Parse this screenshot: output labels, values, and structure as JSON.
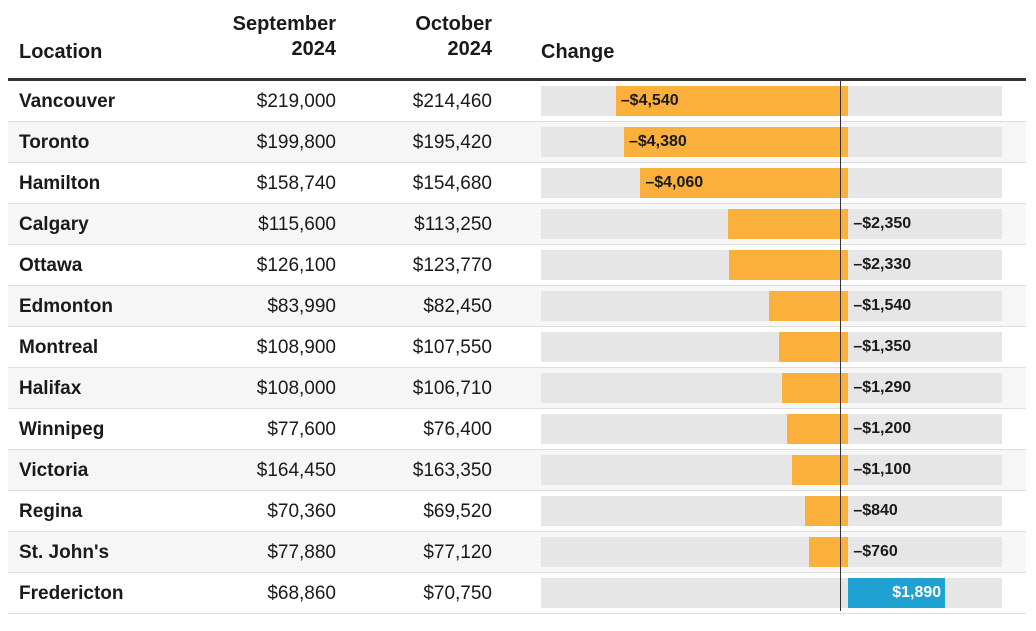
{
  "chart_data": {
    "type": "table",
    "columns": [
      "Location",
      "September 2024",
      "October 2024",
      "Change"
    ],
    "rows": [
      {
        "location": "Vancouver",
        "sep": "$219,000",
        "oct": "$214,460",
        "change": -4540,
        "change_label": "–$4,540"
      },
      {
        "location": "Toronto",
        "sep": "$199,800",
        "oct": "$195,420",
        "change": -4380,
        "change_label": "–$4,380"
      },
      {
        "location": "Hamilton",
        "sep": "$158,740",
        "oct": "$154,680",
        "change": -4060,
        "change_label": "–$4,060"
      },
      {
        "location": "Calgary",
        "sep": "$115,600",
        "oct": "$113,250",
        "change": -2350,
        "change_label": "–$2,350"
      },
      {
        "location": "Ottawa",
        "sep": "$126,100",
        "oct": "$123,770",
        "change": -2330,
        "change_label": "–$2,330"
      },
      {
        "location": "Edmonton",
        "sep": "$83,990",
        "oct": "$82,450",
        "change": -1540,
        "change_label": "–$1,540"
      },
      {
        "location": "Montreal",
        "sep": "$108,900",
        "oct": "$107,550",
        "change": -1350,
        "change_label": "–$1,350"
      },
      {
        "location": "Halifax",
        "sep": "$108,000",
        "oct": "$106,710",
        "change": -1290,
        "change_label": "–$1,290"
      },
      {
        "location": "Winnipeg",
        "sep": "$77,600",
        "oct": "$76,400",
        "change": -1200,
        "change_label": "–$1,200"
      },
      {
        "location": "Victoria",
        "sep": "$164,450",
        "oct": "$163,350",
        "change": -1100,
        "change_label": "–$1,100"
      },
      {
        "location": "Regina",
        "sep": "$70,360",
        "oct": "$69,520",
        "change": -840,
        "change_label": "–$840"
      },
      {
        "location": "St. John's",
        "sep": "$77,880",
        "oct": "$77,120",
        "change": -760,
        "change_label": "–$760"
      },
      {
        "location": "Fredericton",
        "sep": "$68,860",
        "oct": "$70,750",
        "change": 1890,
        "change_label": "$1,890"
      }
    ],
    "change_range": [
      -6000,
      3000
    ],
    "colors": {
      "negative": "#fbb03b",
      "positive": "#1fa2d1",
      "track": "#e6e6e6"
    }
  },
  "header": {
    "location": "Location",
    "sep": [
      "September",
      "2024"
    ],
    "oct": [
      "October",
      "2024"
    ],
    "change": "Change"
  }
}
